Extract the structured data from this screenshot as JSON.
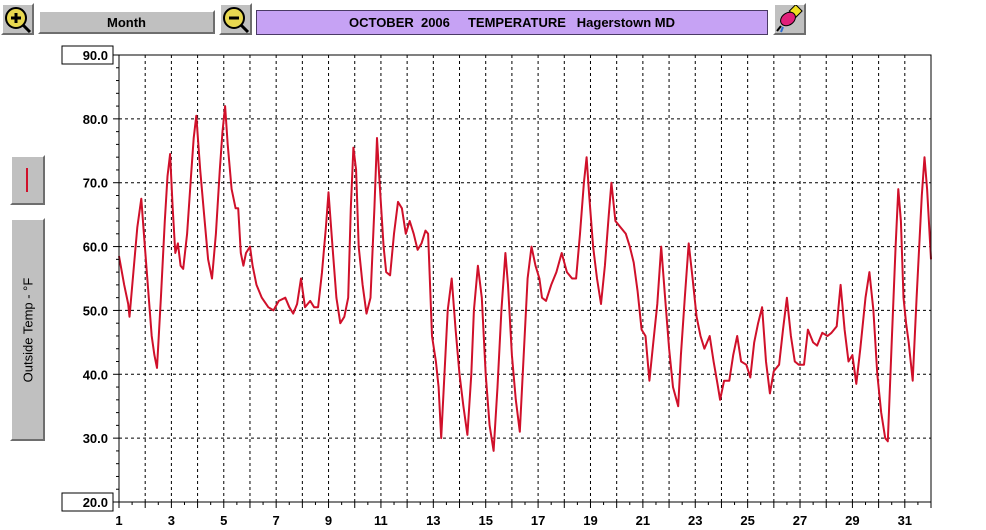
{
  "toolbar": {
    "zoom_in_icon": "magnifier-plus-icon",
    "zoom_out_icon": "magnifier-minus-icon",
    "range_label": "Month",
    "title": "OCTOBER  2006     TEMPERATURE   Hagerstown MD",
    "paint_icon": "paint-bucket-icon"
  },
  "sidebar": {
    "series_swatch_color": "#d0102a",
    "ylabel": "Outside Temp - °F"
  },
  "colors": {
    "line": "#d0102a",
    "title_bg": "#c6a2f4",
    "grid": "#000000",
    "button": "#c0c0c0"
  },
  "chart_data": {
    "type": "line",
    "title": "OCTOBER  2006     TEMPERATURE   Hagerstown MD",
    "xlabel": "",
    "ylabel": "Outside Temp - °F",
    "xlim": [
      1,
      32
    ],
    "ylim": [
      20,
      90
    ],
    "x_ticks": [
      1,
      3,
      5,
      7,
      9,
      11,
      13,
      15,
      17,
      19,
      21,
      23,
      25,
      27,
      29,
      31
    ],
    "y_ticks": [
      20,
      30,
      40,
      50,
      60,
      70,
      80,
      90
    ],
    "y_tick_labels": [
      "20.0",
      "30.0",
      "40.0",
      "50.0",
      "60.0",
      "70.0",
      "80.0",
      "90.0"
    ],
    "grid": true,
    "series": [
      {
        "color": "#d0102a",
        "points": [
          [
            1.0,
            58.5
          ],
          [
            1.2,
            54
          ],
          [
            1.35,
            51
          ],
          [
            1.4,
            49
          ],
          [
            1.55,
            56
          ],
          [
            1.7,
            63
          ],
          [
            1.85,
            67.5
          ],
          [
            1.95,
            62
          ],
          [
            2.1,
            54
          ],
          [
            2.25,
            46
          ],
          [
            2.35,
            43
          ],
          [
            2.45,
            41
          ],
          [
            2.6,
            52
          ],
          [
            2.75,
            64
          ],
          [
            2.85,
            71
          ],
          [
            2.95,
            74.5
          ],
          [
            3.05,
            66
          ],
          [
            3.15,
            59
          ],
          [
            3.25,
            60.5
          ],
          [
            3.35,
            57
          ],
          [
            3.45,
            56.5
          ],
          [
            3.6,
            62
          ],
          [
            3.75,
            71
          ],
          [
            3.85,
            77
          ],
          [
            3.95,
            80.5
          ],
          [
            4.1,
            72
          ],
          [
            4.25,
            65
          ],
          [
            4.4,
            58
          ],
          [
            4.55,
            55
          ],
          [
            4.7,
            62
          ],
          [
            4.85,
            72
          ],
          [
            4.95,
            78
          ],
          [
            5.05,
            82
          ],
          [
            5.15,
            76
          ],
          [
            5.3,
            69
          ],
          [
            5.45,
            66
          ],
          [
            5.55,
            66
          ],
          [
            5.65,
            59
          ],
          [
            5.75,
            57
          ],
          [
            5.85,
            59
          ],
          [
            6.0,
            60
          ],
          [
            6.1,
            57
          ],
          [
            6.25,
            54
          ],
          [
            6.45,
            52
          ],
          [
            6.7,
            50.5
          ],
          [
            6.9,
            50
          ],
          [
            7.1,
            51.5
          ],
          [
            7.35,
            52
          ],
          [
            7.5,
            50.5
          ],
          [
            7.65,
            49.5
          ],
          [
            7.8,
            51
          ],
          [
            7.95,
            55
          ],
          [
            8.1,
            50.5
          ],
          [
            8.3,
            51.5
          ],
          [
            8.45,
            50.5
          ],
          [
            8.6,
            50.5
          ],
          [
            8.75,
            56
          ],
          [
            8.9,
            63
          ],
          [
            9.0,
            68.5
          ],
          [
            9.15,
            60
          ],
          [
            9.3,
            52
          ],
          [
            9.45,
            48
          ],
          [
            9.6,
            49
          ],
          [
            9.75,
            52
          ],
          [
            9.85,
            66
          ],
          [
            9.95,
            75.5
          ],
          [
            10.05,
            72
          ],
          [
            10.15,
            60
          ],
          [
            10.3,
            54
          ],
          [
            10.45,
            49.5
          ],
          [
            10.6,
            52
          ],
          [
            10.75,
            66
          ],
          [
            10.85,
            77
          ],
          [
            10.95,
            70
          ],
          [
            11.1,
            60
          ],
          [
            11.2,
            56
          ],
          [
            11.35,
            55.5
          ],
          [
            11.5,
            62
          ],
          [
            11.65,
            67
          ],
          [
            11.8,
            66
          ],
          [
            11.95,
            62
          ],
          [
            12.1,
            64
          ],
          [
            12.25,
            62
          ],
          [
            12.4,
            59.5
          ],
          [
            12.55,
            60.5
          ],
          [
            12.7,
            62.5
          ],
          [
            12.8,
            62
          ],
          [
            12.95,
            46
          ],
          [
            13.1,
            42
          ],
          [
            13.2,
            38
          ],
          [
            13.3,
            30
          ],
          [
            13.45,
            42
          ],
          [
            13.55,
            50
          ],
          [
            13.7,
            55
          ],
          [
            13.85,
            47
          ],
          [
            14.0,
            40
          ],
          [
            14.15,
            35
          ],
          [
            14.3,
            30.5
          ],
          [
            14.45,
            40
          ],
          [
            14.55,
            50
          ],
          [
            14.7,
            57
          ],
          [
            14.85,
            52
          ],
          [
            15.0,
            40
          ],
          [
            15.15,
            32
          ],
          [
            15.3,
            28
          ],
          [
            15.45,
            38
          ],
          [
            15.6,
            50
          ],
          [
            15.75,
            59
          ],
          [
            15.85,
            54
          ],
          [
            16.0,
            43
          ],
          [
            16.15,
            36
          ],
          [
            16.3,
            31
          ],
          [
            16.45,
            43
          ],
          [
            16.6,
            55
          ],
          [
            16.75,
            60
          ],
          [
            16.9,
            57
          ],
          [
            17.05,
            55
          ],
          [
            17.15,
            52
          ],
          [
            17.3,
            51.5
          ],
          [
            17.5,
            54
          ],
          [
            17.7,
            56
          ],
          [
            17.9,
            59
          ],
          [
            18.1,
            56
          ],
          [
            18.3,
            55
          ],
          [
            18.45,
            55
          ],
          [
            18.6,
            62
          ],
          [
            18.75,
            70
          ],
          [
            18.85,
            74
          ],
          [
            18.95,
            68
          ],
          [
            19.1,
            60
          ],
          [
            19.25,
            55
          ],
          [
            19.4,
            51
          ],
          [
            19.55,
            57
          ],
          [
            19.7,
            65
          ],
          [
            19.8,
            70
          ],
          [
            19.95,
            64
          ],
          [
            20.15,
            63
          ],
          [
            20.35,
            62
          ],
          [
            20.5,
            60
          ],
          [
            20.65,
            57.5
          ],
          [
            20.8,
            53
          ],
          [
            20.95,
            47
          ],
          [
            21.1,
            46
          ],
          [
            21.25,
            39
          ],
          [
            21.4,
            45
          ],
          [
            21.55,
            51
          ],
          [
            21.7,
            60
          ],
          [
            21.85,
            52
          ],
          [
            22.0,
            44
          ],
          [
            22.15,
            38
          ],
          [
            22.35,
            35
          ],
          [
            22.45,
            43
          ],
          [
            22.6,
            52
          ],
          [
            22.75,
            60.5
          ],
          [
            22.9,
            55
          ],
          [
            23.05,
            49
          ],
          [
            23.2,
            46
          ],
          [
            23.35,
            44
          ],
          [
            23.55,
            46
          ],
          [
            23.7,
            42
          ],
          [
            23.85,
            38.5
          ],
          [
            23.95,
            36
          ],
          [
            24.1,
            39
          ],
          [
            24.3,
            39
          ],
          [
            24.45,
            43
          ],
          [
            24.6,
            46
          ],
          [
            24.75,
            42
          ],
          [
            24.95,
            41.5
          ],
          [
            25.1,
            39.5
          ],
          [
            25.25,
            45
          ],
          [
            25.4,
            48
          ],
          [
            25.55,
            50.5
          ],
          [
            25.7,
            42
          ],
          [
            25.85,
            37
          ],
          [
            26.0,
            40.5
          ],
          [
            26.2,
            41.5
          ],
          [
            26.35,
            47
          ],
          [
            26.5,
            52
          ],
          [
            26.65,
            46
          ],
          [
            26.8,
            42
          ],
          [
            26.95,
            41.5
          ],
          [
            27.15,
            41.5
          ],
          [
            27.3,
            47
          ],
          [
            27.5,
            45
          ],
          [
            27.65,
            44.5
          ],
          [
            27.85,
            46.5
          ],
          [
            28.05,
            46
          ],
          [
            28.2,
            46.5
          ],
          [
            28.4,
            47.5
          ],
          [
            28.55,
            54
          ],
          [
            28.7,
            47
          ],
          [
            28.85,
            42
          ],
          [
            29.0,
            43
          ],
          [
            29.15,
            38.5
          ],
          [
            29.3,
            44
          ],
          [
            29.5,
            52
          ],
          [
            29.65,
            56
          ],
          [
            29.8,
            50
          ],
          [
            29.95,
            40
          ],
          [
            30.1,
            34
          ],
          [
            30.25,
            30
          ],
          [
            30.35,
            29.5
          ],
          [
            30.5,
            45
          ],
          [
            30.65,
            60
          ],
          [
            30.75,
            69
          ],
          [
            30.85,
            64
          ],
          [
            30.95,
            52
          ],
          [
            31.05,
            48
          ],
          [
            31.15,
            45
          ],
          [
            31.3,
            39
          ],
          [
            31.45,
            52
          ],
          [
            31.55,
            60
          ],
          [
            31.65,
            68
          ],
          [
            31.75,
            74
          ],
          [
            31.85,
            69
          ],
          [
            32.0,
            58
          ]
        ]
      }
    ]
  }
}
